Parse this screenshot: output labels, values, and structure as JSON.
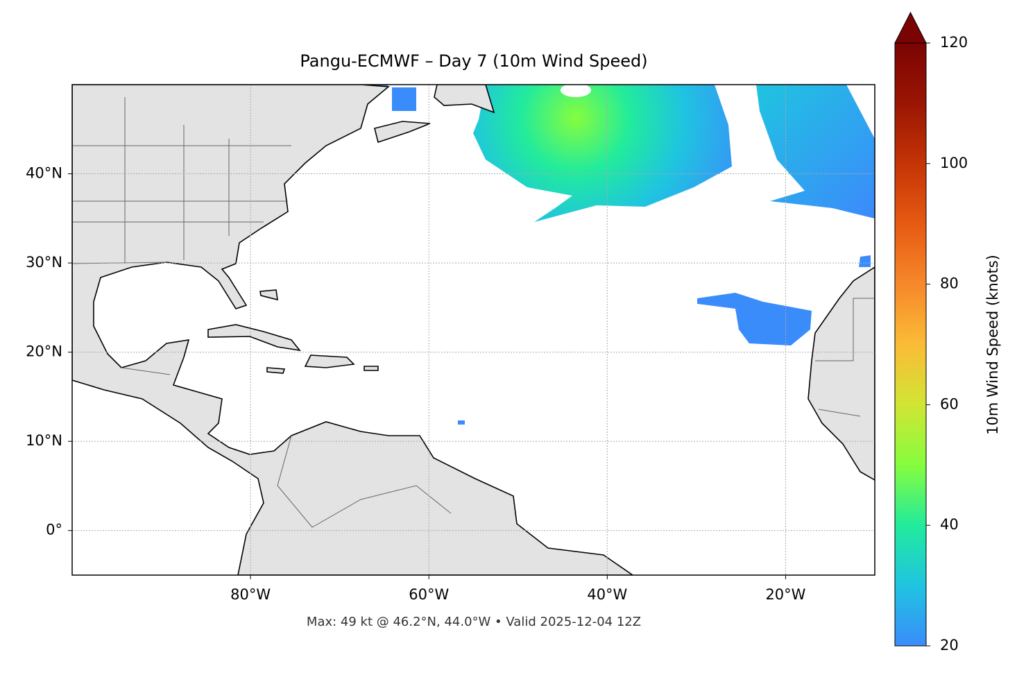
{
  "chart_data": {
    "type": "map",
    "title": "Pangu-ECMWF – Day 7 (10m Wind Speed)",
    "footer": "Max: 49 kt @ 46.2°N, 44.0°W • Valid 2025-12-04 12Z",
    "xlim": [
      -100,
      -10
    ],
    "ylim": [
      -5,
      50
    ],
    "xticks": [
      {
        "value": -80,
        "label": "80°W"
      },
      {
        "value": -60,
        "label": "60°W"
      },
      {
        "value": -40,
        "label": "40°W"
      },
      {
        "value": -20,
        "label": "20°W"
      }
    ],
    "yticks": [
      {
        "value": 0,
        "label": "0°"
      },
      {
        "value": 10,
        "label": "10°N"
      },
      {
        "value": 20,
        "label": "20°N"
      },
      {
        "value": 30,
        "label": "30°N"
      },
      {
        "value": 40,
        "label": "40°N"
      }
    ],
    "grid": true,
    "colorbar": {
      "label": "10m Wind Speed (knots)",
      "lim": [
        20,
        120
      ],
      "ticks": [
        20,
        40,
        60,
        80,
        100,
        120
      ],
      "colors": [
        "#3b8cfb",
        "#1fc4e0",
        "#22eb9c",
        "#86fd3e",
        "#d1e534",
        "#fbbb37",
        "#f6882a",
        "#e65a12",
        "#c43406",
        "#9a1503",
        "#7a0403"
      ]
    }
  }
}
